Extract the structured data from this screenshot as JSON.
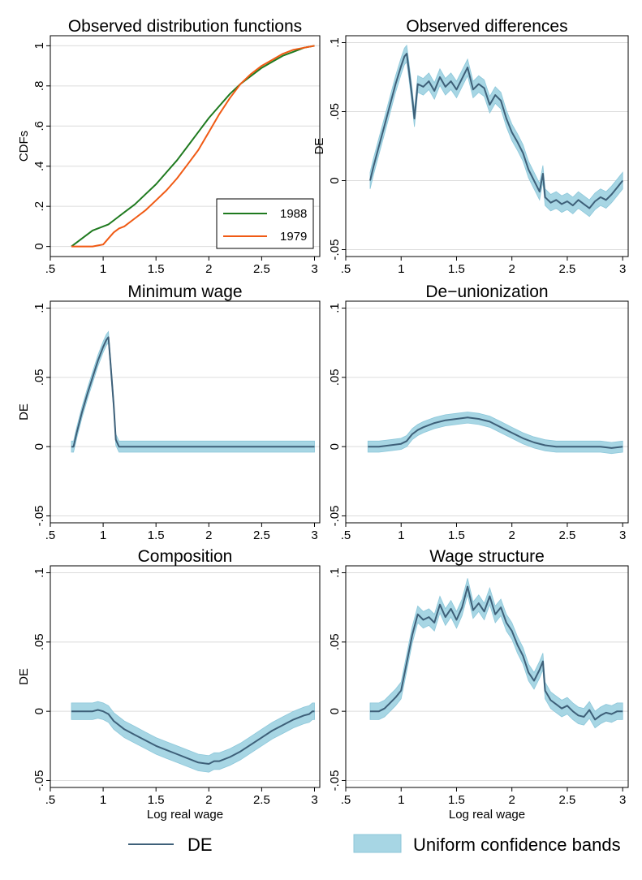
{
  "colors": {
    "de_line": "#3e6079",
    "band_fill": "#a7d6e4",
    "band_edge": "#8cc7da",
    "grid": "#dcdcdc",
    "cdf_1988": "#1f7a1f",
    "cdf_1979": "#f05a14"
  },
  "legend": {
    "de_label": "DE",
    "band_label": "Uniform confidence bands"
  },
  "chart_data": [
    {
      "id": "observed-distribution-functions",
      "type": "line",
      "title": "Observed distribution functions",
      "ylabel": "CDFs",
      "xlabel": "",
      "xlim": [
        0.5,
        3.05
      ],
      "ylim": [
        -0.05,
        1.05
      ],
      "xticks": [
        0.5,
        1,
        1.5,
        2,
        2.5,
        3
      ],
      "xtick_labels": [
        ".5",
        "1",
        "1.5",
        "2",
        "2.5",
        "3"
      ],
      "yticks": [
        0,
        0.2,
        0.4,
        0.6,
        0.8,
        1
      ],
      "ytick_labels": [
        "0",
        ".2",
        ".4",
        ".6",
        ".8",
        "1"
      ],
      "legend_position": "bottom-right",
      "series": [
        {
          "name": "1988",
          "color": "#1f7a1f",
          "x": [
            0.7,
            0.75,
            0.8,
            0.85,
            0.9,
            0.95,
            1.0,
            1.05,
            1.1,
            1.15,
            1.2,
            1.3,
            1.4,
            1.5,
            1.6,
            1.7,
            1.8,
            1.9,
            2.0,
            2.1,
            2.2,
            2.3,
            2.4,
            2.5,
            2.6,
            2.7,
            2.8,
            2.9,
            3.0
          ],
          "y": [
            0.0,
            0.02,
            0.04,
            0.06,
            0.08,
            0.09,
            0.1,
            0.11,
            0.13,
            0.15,
            0.17,
            0.21,
            0.26,
            0.31,
            0.37,
            0.43,
            0.5,
            0.57,
            0.64,
            0.7,
            0.76,
            0.81,
            0.85,
            0.89,
            0.92,
            0.95,
            0.97,
            0.99,
            1.0
          ]
        },
        {
          "name": "1979",
          "color": "#f05a14",
          "x": [
            0.7,
            0.75,
            0.8,
            0.85,
            0.9,
            0.95,
            1.0,
            1.05,
            1.1,
            1.15,
            1.2,
            1.3,
            1.4,
            1.5,
            1.6,
            1.7,
            1.8,
            1.9,
            2.0,
            2.1,
            2.2,
            2.3,
            2.4,
            2.5,
            2.6,
            2.7,
            2.8,
            2.9,
            3.0
          ],
          "y": [
            0.0,
            0.0,
            0.0,
            0.0,
            0.0,
            0.005,
            0.01,
            0.04,
            0.07,
            0.09,
            0.1,
            0.14,
            0.18,
            0.23,
            0.28,
            0.34,
            0.41,
            0.48,
            0.57,
            0.66,
            0.74,
            0.81,
            0.86,
            0.9,
            0.93,
            0.96,
            0.98,
            0.99,
            1.0
          ]
        }
      ]
    },
    {
      "id": "observed-differences",
      "type": "line",
      "title": "Observed differences",
      "ylabel": "DE",
      "xlabel": "",
      "xlim": [
        0.5,
        3.05
      ],
      "ylim": [
        -0.055,
        0.105
      ],
      "xticks": [
        0.5,
        1,
        1.5,
        2,
        2.5,
        3
      ],
      "xtick_labels": [
        ".5",
        "1",
        "1.5",
        "2",
        "2.5",
        "3"
      ],
      "yticks": [
        -0.05,
        0,
        0.05,
        0.1
      ],
      "ytick_labels": [
        "-.05",
        "0",
        ".05",
        ".1"
      ],
      "series": [
        {
          "name": "DE",
          "x": [
            0.72,
            0.75,
            0.8,
            0.85,
            0.9,
            0.95,
            1.0,
            1.03,
            1.05,
            1.07,
            1.1,
            1.12,
            1.15,
            1.2,
            1.25,
            1.3,
            1.35,
            1.4,
            1.45,
            1.5,
            1.55,
            1.6,
            1.65,
            1.7,
            1.75,
            1.8,
            1.85,
            1.9,
            1.95,
            2.0,
            2.05,
            2.1,
            2.15,
            2.2,
            2.25,
            2.28,
            2.3,
            2.35,
            2.4,
            2.45,
            2.5,
            2.55,
            2.6,
            2.65,
            2.7,
            2.75,
            2.8,
            2.85,
            2.9,
            2.95,
            3.0
          ],
          "y": [
            0.0,
            0.01,
            0.025,
            0.04,
            0.055,
            0.07,
            0.083,
            0.09,
            0.092,
            0.08,
            0.06,
            0.045,
            0.07,
            0.068,
            0.072,
            0.065,
            0.075,
            0.068,
            0.072,
            0.066,
            0.074,
            0.082,
            0.066,
            0.07,
            0.067,
            0.055,
            0.062,
            0.058,
            0.045,
            0.035,
            0.028,
            0.02,
            0.008,
            0.0,
            -0.008,
            0.005,
            -0.012,
            -0.016,
            -0.014,
            -0.017,
            -0.015,
            -0.018,
            -0.014,
            -0.017,
            -0.02,
            -0.015,
            -0.012,
            -0.014,
            -0.01,
            -0.005,
            0.0
          ],
          "band": 0.006
        }
      ]
    },
    {
      "id": "minimum-wage",
      "type": "line",
      "title": "Minimum wage",
      "ylabel": "DE",
      "xlabel": "",
      "xlim": [
        0.5,
        3.05
      ],
      "ylim": [
        -0.055,
        0.105
      ],
      "xticks": [
        0.5,
        1,
        1.5,
        2,
        2.5,
        3
      ],
      "xtick_labels": [
        ".5",
        "1",
        "1.5",
        "2",
        "2.5",
        "3"
      ],
      "yticks": [
        -0.05,
        0,
        0.05,
        0.1
      ],
      "ytick_labels": [
        "-.05",
        "0",
        ".05",
        ".1"
      ],
      "series": [
        {
          "name": "DE",
          "x": [
            0.7,
            0.72,
            0.75,
            0.8,
            0.85,
            0.9,
            0.95,
            1.0,
            1.03,
            1.05,
            1.07,
            1.1,
            1.12,
            1.15,
            1.3,
            1.5,
            2.0,
            2.5,
            3.0
          ],
          "y": [
            0.0,
            0.0,
            0.01,
            0.025,
            0.038,
            0.05,
            0.062,
            0.072,
            0.077,
            0.079,
            0.06,
            0.03,
            0.005,
            0.0,
            0.0,
            0.0,
            0.0,
            0.0,
            0.0
          ],
          "band": 0.004
        }
      ]
    },
    {
      "id": "de-unionization",
      "type": "line",
      "title": "De−unionization",
      "ylabel": "",
      "xlabel": "",
      "xlim": [
        0.5,
        3.05
      ],
      "ylim": [
        -0.055,
        0.105
      ],
      "xticks": [
        0.5,
        1,
        1.5,
        2,
        2.5,
        3
      ],
      "xtick_labels": [
        ".5",
        "1",
        "1.5",
        "2",
        "2.5",
        "3"
      ],
      "yticks": [
        -0.05,
        0,
        0.05,
        0.1
      ],
      "ytick_labels": [
        "-.05",
        "0",
        ".05",
        ".1"
      ],
      "series": [
        {
          "name": "DE",
          "x": [
            0.7,
            0.8,
            0.9,
            1.0,
            1.05,
            1.1,
            1.15,
            1.2,
            1.3,
            1.4,
            1.5,
            1.6,
            1.7,
            1.8,
            1.9,
            2.0,
            2.1,
            2.2,
            2.3,
            2.4,
            2.5,
            2.6,
            2.7,
            2.8,
            2.9,
            3.0
          ],
          "y": [
            0.0,
            0.0,
            0.001,
            0.002,
            0.004,
            0.009,
            0.012,
            0.014,
            0.017,
            0.019,
            0.02,
            0.021,
            0.02,
            0.018,
            0.014,
            0.01,
            0.006,
            0.003,
            0.001,
            0.0,
            0.0,
            0.0,
            0.0,
            0.0,
            -0.001,
            0.0
          ],
          "band": 0.004
        }
      ]
    },
    {
      "id": "composition",
      "type": "line",
      "title": "Composition",
      "ylabel": "DE",
      "xlabel": "Log real wage",
      "xlim": [
        0.5,
        3.05
      ],
      "ylim": [
        -0.055,
        0.105
      ],
      "xticks": [
        0.5,
        1,
        1.5,
        2,
        2.5,
        3
      ],
      "xtick_labels": [
        ".5",
        "1",
        "1.5",
        "2",
        "2.5",
        "3"
      ],
      "yticks": [
        -0.05,
        0,
        0.05,
        0.1
      ],
      "ytick_labels": [
        "-.05",
        "0",
        ".05",
        ".1"
      ],
      "series": [
        {
          "name": "DE",
          "x": [
            0.7,
            0.8,
            0.9,
            0.95,
            1.0,
            1.05,
            1.1,
            1.2,
            1.3,
            1.4,
            1.5,
            1.6,
            1.7,
            1.8,
            1.9,
            2.0,
            2.05,
            2.1,
            2.2,
            2.3,
            2.4,
            2.5,
            2.6,
            2.7,
            2.8,
            2.9,
            2.95,
            2.98,
            3.0
          ],
          "y": [
            0.0,
            0.0,
            0.0,
            0.001,
            0.0,
            -0.002,
            -0.007,
            -0.013,
            -0.017,
            -0.021,
            -0.025,
            -0.028,
            -0.031,
            -0.034,
            -0.037,
            -0.038,
            -0.036,
            -0.036,
            -0.033,
            -0.029,
            -0.024,
            -0.019,
            -0.014,
            -0.01,
            -0.006,
            -0.003,
            -0.002,
            0.0,
            0.0
          ],
          "band": 0.006
        }
      ]
    },
    {
      "id": "wage-structure",
      "type": "line",
      "title": "Wage structure",
      "ylabel": "",
      "xlabel": "Log real wage",
      "xlim": [
        0.5,
        3.05
      ],
      "ylim": [
        -0.055,
        0.105
      ],
      "xticks": [
        0.5,
        1,
        1.5,
        2,
        2.5,
        3
      ],
      "xtick_labels": [
        ".5",
        "1",
        "1.5",
        "2",
        "2.5",
        "3"
      ],
      "yticks": [
        -0.05,
        0,
        0.05,
        0.1
      ],
      "ytick_labels": [
        "-.05",
        "0",
        ".05",
        ".1"
      ],
      "series": [
        {
          "name": "DE",
          "x": [
            0.72,
            0.8,
            0.85,
            0.9,
            0.95,
            1.0,
            1.05,
            1.1,
            1.15,
            1.2,
            1.25,
            1.3,
            1.35,
            1.4,
            1.45,
            1.5,
            1.55,
            1.6,
            1.65,
            1.7,
            1.75,
            1.8,
            1.85,
            1.9,
            1.95,
            2.0,
            2.05,
            2.1,
            2.15,
            2.2,
            2.25,
            2.28,
            2.3,
            2.35,
            2.4,
            2.45,
            2.5,
            2.55,
            2.6,
            2.65,
            2.7,
            2.75,
            2.8,
            2.85,
            2.9,
            2.95,
            3.0
          ],
          "y": [
            0.0,
            0.0,
            0.002,
            0.006,
            0.01,
            0.015,
            0.035,
            0.055,
            0.07,
            0.066,
            0.068,
            0.064,
            0.077,
            0.068,
            0.074,
            0.066,
            0.075,
            0.09,
            0.073,
            0.078,
            0.072,
            0.083,
            0.07,
            0.075,
            0.064,
            0.058,
            0.048,
            0.04,
            0.028,
            0.022,
            0.03,
            0.036,
            0.015,
            0.008,
            0.005,
            0.002,
            0.004,
            0.0,
            -0.003,
            -0.004,
            0.001,
            -0.006,
            -0.003,
            -0.001,
            -0.002,
            0.0,
            0.0
          ],
          "band": 0.006
        }
      ]
    }
  ]
}
